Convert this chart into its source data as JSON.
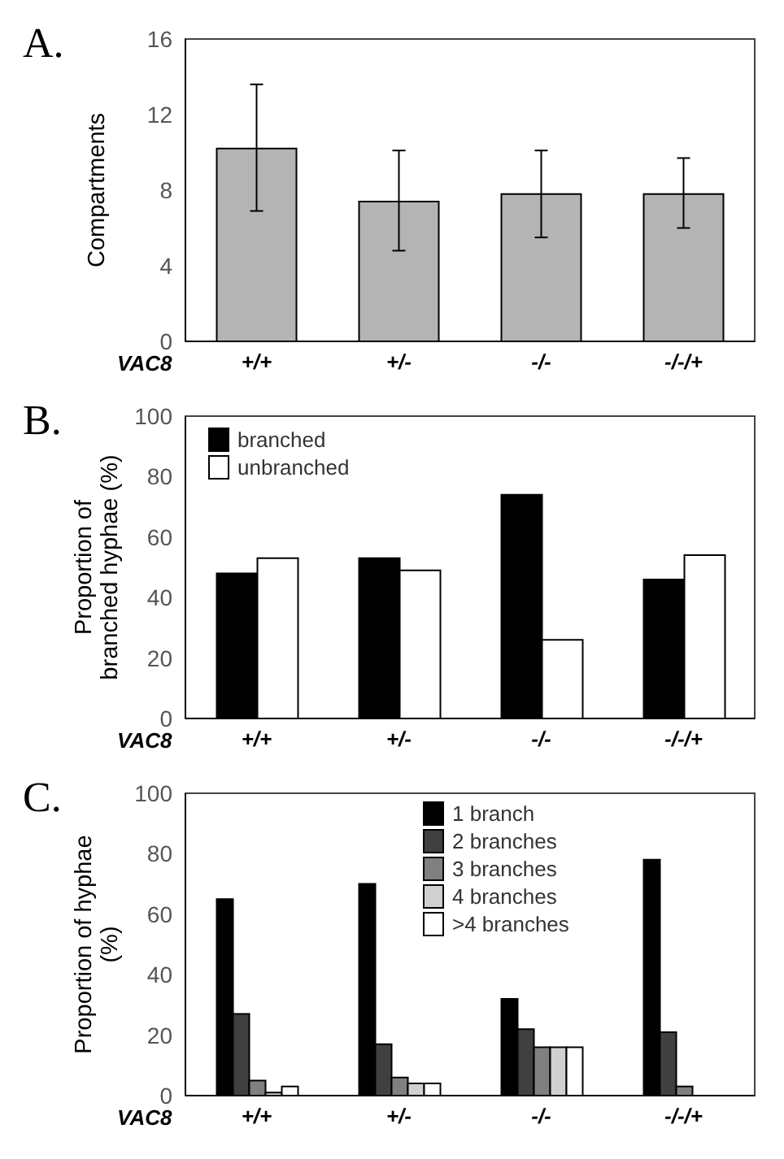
{
  "chart_data": [
    {
      "type": "bar",
      "title": "A.",
      "xlabel": "VAC8",
      "ylabel": "Compartments",
      "categories": [
        "+/+",
        "+/-",
        "-/-",
        "-/-/+"
      ],
      "series": [
        {
          "color": "#b4b4b4",
          "values": [
            10.2,
            7.4,
            7.8,
            7.8
          ],
          "errors": [
            [
              6.9,
              13.6
            ],
            [
              4.8,
              10.1
            ],
            [
              5.5,
              10.1
            ],
            [
              6.0,
              9.7
            ]
          ]
        }
      ],
      "ylim": [
        0,
        16
      ],
      "yticks": [
        0,
        4,
        8,
        12,
        16
      ],
      "grid": false,
      "legend": false
    },
    {
      "type": "bar",
      "title": "B.",
      "xlabel": "VAC8",
      "ylabel": "Proportion of branched hyphae (%)",
      "categories": [
        "+/+",
        "+/-",
        "-/-",
        "-/-/+"
      ],
      "series": [
        {
          "name": "branched",
          "color": "#000000",
          "values": [
            48,
            53,
            74,
            46
          ]
        },
        {
          "name": "unbranched",
          "color": "#ffffff",
          "values": [
            53,
            49,
            26,
            54
          ]
        }
      ],
      "ylim": [
        0,
        100
      ],
      "yticks": [
        0,
        20,
        40,
        60,
        80,
        100
      ],
      "grid": false,
      "legend": "top left"
    },
    {
      "type": "bar",
      "title": "C.",
      "xlabel": "VAC8",
      "ylabel": "Proportion of hyphae (%)",
      "categories": [
        "+/+",
        "+/-",
        "-/-",
        "-/-/+"
      ],
      "series": [
        {
          "name": "1 branch",
          "color": "#000000",
          "values": [
            65,
            70,
            32,
            78
          ]
        },
        {
          "name": "2 branches",
          "color": "#404040",
          "values": [
            27,
            17,
            22,
            21
          ]
        },
        {
          "name": "3 branches",
          "color": "#808080",
          "values": [
            5,
            6,
            16,
            3
          ]
        },
        {
          "name": "4 branches",
          "color": "#d0d0d0",
          "values": [
            1,
            4,
            16,
            0
          ]
        },
        {
          "name": ">4 branches",
          "color": "#ffffff",
          "values": [
            3,
            4,
            16,
            0
          ]
        }
      ],
      "ylim": [
        0,
        100
      ],
      "yticks": [
        0,
        20,
        40,
        60,
        80,
        100
      ],
      "grid": false,
      "legend": "top right"
    }
  ]
}
